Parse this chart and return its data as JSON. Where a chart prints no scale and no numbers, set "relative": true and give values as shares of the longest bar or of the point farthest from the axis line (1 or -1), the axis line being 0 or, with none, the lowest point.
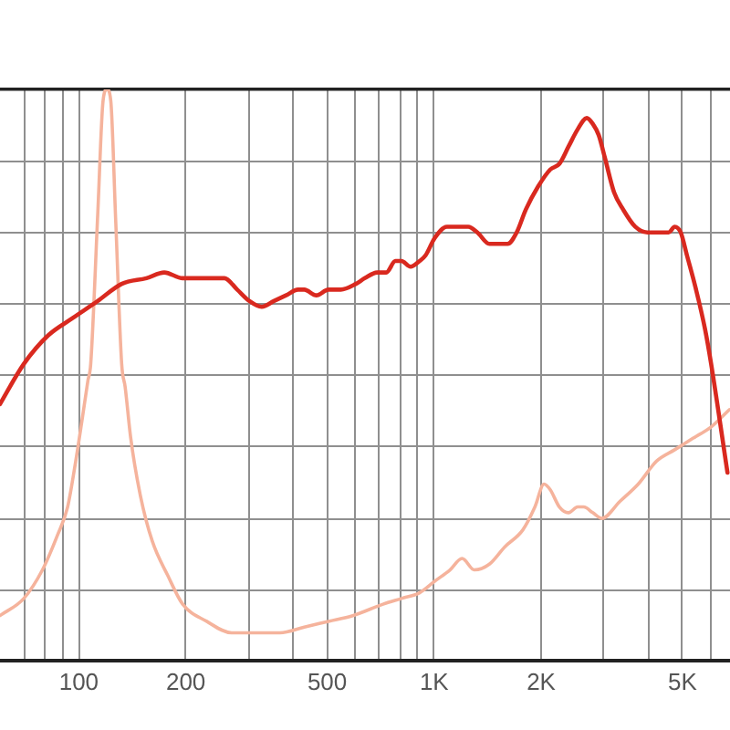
{
  "chart_data": {
    "type": "line",
    "relative": true,
    "log": "x",
    "grid": true,
    "marker": "none",
    "xlim": [
      60,
      6800
    ],
    "xticks": [
      {
        "value": 70,
        "label": null
      },
      {
        "value": 80,
        "label": null
      },
      {
        "value": 90,
        "label": null
      },
      100,
      200,
      {
        "value": 300,
        "label": null
      },
      {
        "value": 400,
        "label": null
      },
      500,
      {
        "value": 600,
        "label": null
      },
      {
        "value": 700,
        "label": null
      },
      {
        "value": 800,
        "label": null
      },
      {
        "value": 900,
        "label": null
      },
      {
        "value": 1000,
        "label": "1K"
      },
      {
        "value": 2000,
        "label": "2K"
      },
      {
        "value": 3000,
        "label": null
      },
      {
        "value": 4000,
        "label": null
      },
      {
        "value": 5000,
        "label": "5K"
      },
      {
        "value": 6000,
        "label": null
      }
    ],
    "series": [
      {
        "color": "#d9291f",
        "x": [
          60,
          70,
          82,
          96,
          113,
          132,
          155,
          174,
          196,
          221,
          248,
          257,
          279,
          302,
          327,
          354,
          383,
          414,
          431,
          466,
          504,
          546,
          602,
          638,
          691,
          733,
          778,
          809,
          858,
          910,
          946,
          1003,
          1086,
          1152,
          1247,
          1323,
          1430,
          1517,
          1609,
          1707,
          1811,
          1960,
          2122,
          2251,
          2388,
          2533,
          2687,
          2794,
          2905,
          3024,
          3208,
          3403,
          3679,
          3981,
          4309,
          4571,
          4752,
          4941,
          5144,
          5457,
          5788,
          6018,
          6690
        ],
        "values": [
          0.45,
          0.52,
          0.57,
          0.6,
          0.63,
          0.66,
          0.67,
          0.68,
          0.67,
          0.67,
          0.67,
          0.67,
          0.65,
          0.63,
          0.62,
          0.63,
          0.64,
          0.65,
          0.65,
          0.64,
          0.65,
          0.65,
          0.66,
          0.67,
          0.68,
          0.68,
          0.7,
          0.7,
          0.69,
          0.7,
          0.71,
          0.74,
          0.76,
          0.76,
          0.76,
          0.75,
          0.73,
          0.73,
          0.73,
          0.75,
          0.79,
          0.83,
          0.86,
          0.87,
          0.9,
          0.93,
          0.95,
          0.94,
          0.92,
          0.88,
          0.82,
          0.79,
          0.76,
          0.75,
          0.75,
          0.75,
          0.76,
          0.75,
          0.71,
          0.65,
          0.58,
          0.52,
          0.33
        ]
      },
      {
        "color": "#f5b39c",
        "x": [
          60,
          70,
          79,
          87,
          93,
          98,
          102,
          106,
          108,
          113,
          117,
          120,
          123,
          127,
          132,
          135,
          140,
          149,
          161,
          178,
          196,
          229,
          269,
          315,
          368,
          431,
          504,
          590,
          718,
          809,
          910,
          1003,
          1108,
          1198,
          1297,
          1430,
          1579,
          1777,
          1921,
          2038,
          2122,
          2251,
          2388,
          2533,
          2634,
          2794,
          2964,
          3336,
          3752,
          4223,
          4752,
          5348,
          6018,
          6770
        ],
        "values": [
          0.08,
          0.11,
          0.16,
          0.22,
          0.27,
          0.35,
          0.42,
          0.49,
          0.52,
          0.78,
          0.98,
          1,
          0.98,
          0.77,
          0.52,
          0.48,
          0.39,
          0.29,
          0.21,
          0.15,
          0.1,
          0.07,
          0.05,
          0.05,
          0.05,
          0.06,
          0.07,
          0.08,
          0.1,
          0.11,
          0.12,
          0.14,
          0.16,
          0.18,
          0.16,
          0.17,
          0.2,
          0.23,
          0.27,
          0.31,
          0.3,
          0.27,
          0.26,
          0.27,
          0.27,
          0.26,
          0.25,
          0.28,
          0.31,
          0.35,
          0.37,
          0.39,
          0.41,
          0.44
        ]
      }
    ]
  }
}
